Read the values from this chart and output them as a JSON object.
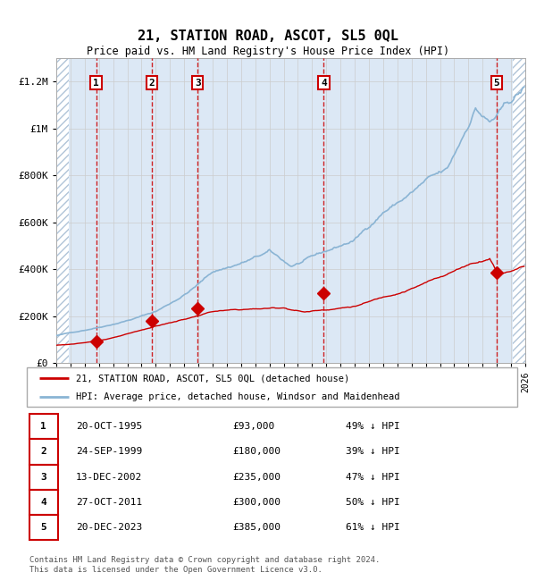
{
  "title": "21, STATION ROAD, ASCOT, SL5 0QL",
  "subtitle": "Price paid vs. HM Land Registry's House Price Index (HPI)",
  "footer": "Contains HM Land Registry data © Crown copyright and database right 2024.\nThis data is licensed under the Open Government Licence v3.0.",
  "legend_line1": "21, STATION ROAD, ASCOT, SL5 0QL (detached house)",
  "legend_line2": "HPI: Average price, detached house, Windsor and Maidenhead",
  "sales": [
    {
      "num": 1,
      "date_label": "20-OCT-1995",
      "year": 1995.8,
      "price": 93000,
      "pct": "49% ↓ HPI"
    },
    {
      "num": 2,
      "date_label": "24-SEP-1999",
      "year": 1999.73,
      "price": 180000,
      "pct": "39% ↓ HPI"
    },
    {
      "num": 3,
      "date_label": "13-DEC-2002",
      "year": 2002.95,
      "price": 235000,
      "pct": "47% ↓ HPI"
    },
    {
      "num": 4,
      "date_label": "27-OCT-2011",
      "year": 2011.82,
      "price": 300000,
      "pct": "50% ↓ HPI"
    },
    {
      "num": 5,
      "date_label": "20-DEC-2023",
      "year": 2023.97,
      "price": 385000,
      "pct": "61% ↓ HPI"
    }
  ],
  "xmin": 1993,
  "xmax": 2026,
  "ymin": 0,
  "ymax": 1300000,
  "yticks": [
    0,
    200000,
    400000,
    600000,
    800000,
    1000000,
    1200000
  ],
  "ytick_labels": [
    "£0",
    "£200K",
    "£400K",
    "£600K",
    "£800K",
    "£1M",
    "£1.2M"
  ],
  "hpi_color": "#8ab4d4",
  "sale_color": "#cc0000",
  "bg_color": "#dce8f5",
  "vline_color": "#cc0000",
  "grid_color": "#cccccc"
}
